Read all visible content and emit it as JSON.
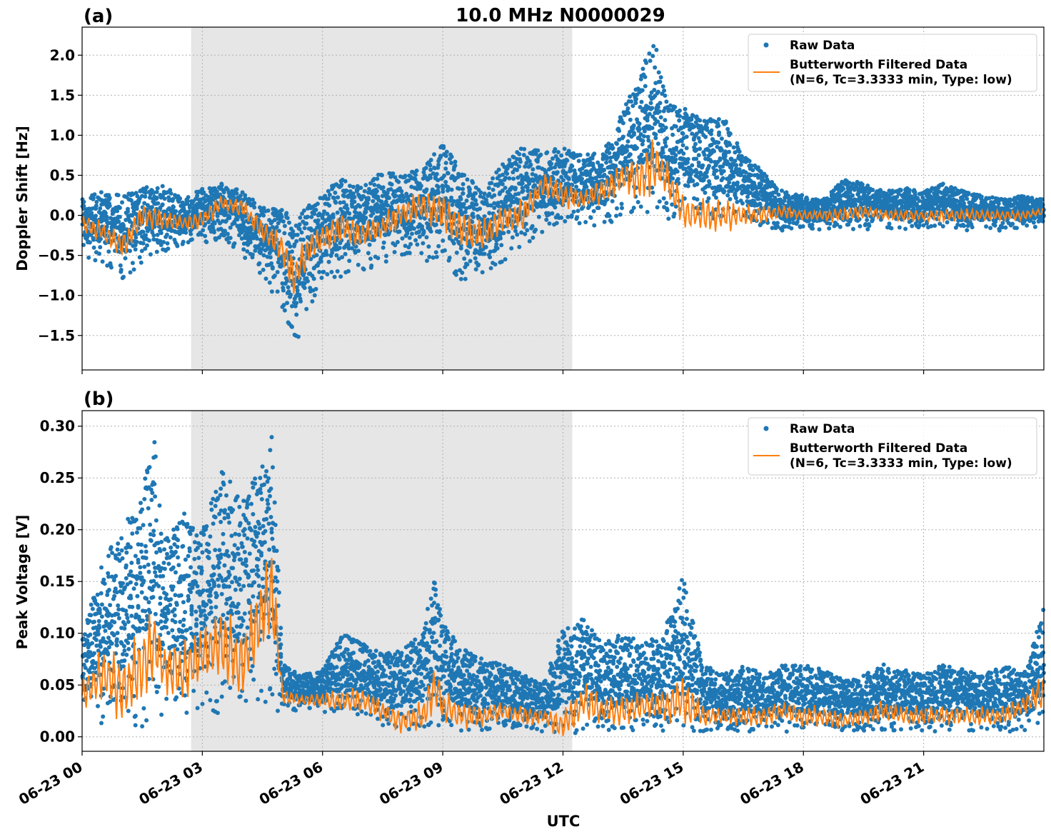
{
  "figure": {
    "title": "10.0 MHz N0000029",
    "xlabel": "UTC"
  },
  "colors": {
    "raw": "#1f77b4",
    "filtered": "#ff7f0e",
    "shade": "#e6e6e6",
    "grid": "#b0b0b0"
  },
  "chart_data": [
    {
      "type": "scatter",
      "panel_label": "(a)",
      "ylabel": "Doppler Shift [Hz]",
      "xlim": [
        0,
        24
      ],
      "ylim": [
        -1.93,
        2.35
      ],
      "yticks": [
        -1.5,
        -1.0,
        -0.5,
        0.0,
        0.5,
        1.0,
        1.5,
        2.0
      ],
      "ytick_labels": [
        "−1.5",
        "−1.0",
        "−0.5",
        "0.0",
        "0.5",
        "1.0",
        "1.5",
        "2.0"
      ],
      "xticks": [
        0,
        3,
        6,
        9,
        12,
        15,
        18,
        21
      ],
      "xtick_labels": [
        "06-23 00",
        "06-23 03",
        "06-23 06",
        "06-23 09",
        "06-23 12",
        "06-23 15",
        "06-23 18",
        "06-23 21"
      ],
      "shaded_interval_hours": [
        2.72,
        12.23
      ],
      "grid": true,
      "legend": {
        "position": "top-right",
        "raw_label": "Raw Data",
        "filtered_label": "Butterworth Filtered Data",
        "filtered_params": "(N=6, Tc=3.3333 min, Type: low)"
      },
      "series": [
        {
          "name": "Raw Data",
          "kind": "scatter",
          "x": [
            0,
            0.5,
            1.0,
            1.5,
            2.0,
            2.5,
            3.0,
            3.5,
            4.0,
            4.5,
            5.0,
            5.3,
            5.6,
            6.0,
            6.5,
            7.0,
            7.5,
            8.0,
            8.5,
            9.0,
            9.5,
            10.0,
            10.5,
            11.0,
            11.5,
            12.0,
            12.5,
            13.0,
            13.5,
            14.0,
            14.3,
            14.6,
            15.0,
            15.5,
            16.0,
            16.5,
            17.0,
            17.5,
            18.0,
            18.5,
            19.0,
            19.5,
            20.0,
            20.5,
            21.0,
            21.5,
            22.0,
            22.5,
            23.0,
            23.5,
            24.0
          ],
          "low": [
            -0.5,
            -0.6,
            -0.8,
            -0.6,
            -0.45,
            -0.4,
            -0.35,
            -0.3,
            -0.5,
            -0.75,
            -1.2,
            -1.7,
            -1.3,
            -0.9,
            -0.85,
            -0.7,
            -0.6,
            -0.5,
            -0.6,
            -0.65,
            -0.9,
            -0.85,
            -0.6,
            -0.4,
            -0.2,
            -0.1,
            -0.1,
            -0.15,
            0.0,
            0.05,
            0.0,
            -0.05,
            -0.05,
            -0.05,
            -0.1,
            -0.1,
            -0.15,
            -0.2,
            -0.15,
            -0.2,
            -0.15,
            -0.2,
            -0.15,
            -0.2,
            -0.15,
            -0.15,
            -0.2,
            -0.15,
            -0.2,
            -0.15,
            -0.15
          ],
          "high": [
            0.2,
            0.3,
            0.25,
            0.35,
            0.4,
            0.2,
            0.35,
            0.4,
            0.3,
            0.1,
            0.1,
            -0.1,
            0.1,
            0.3,
            0.45,
            0.35,
            0.55,
            0.5,
            0.6,
            0.9,
            0.55,
            0.3,
            0.65,
            0.85,
            0.8,
            0.85,
            0.75,
            0.8,
            1.3,
            1.9,
            2.15,
            1.4,
            1.35,
            1.2,
            1.25,
            0.75,
            0.55,
            0.3,
            0.25,
            0.2,
            0.45,
            0.4,
            0.3,
            0.35,
            0.3,
            0.4,
            0.3,
            0.25,
            0.2,
            0.25,
            0.2
          ]
        },
        {
          "name": "Butterworth Filtered Data",
          "kind": "line",
          "x": [
            0,
            0.5,
            1.0,
            1.5,
            2.0,
            2.5,
            3.0,
            3.5,
            4.0,
            4.5,
            5.0,
            5.3,
            5.6,
            6.0,
            6.5,
            7.0,
            7.5,
            8.0,
            8.5,
            9.0,
            9.5,
            10.0,
            10.5,
            11.0,
            11.5,
            12.0,
            12.5,
            13.0,
            13.5,
            14.0,
            14.3,
            14.6,
            15.0,
            15.5,
            16.0,
            16.5,
            17.0,
            17.5,
            18.0,
            18.5,
            19.0,
            19.5,
            20.0,
            20.5,
            21.0,
            21.5,
            22.0,
            22.5,
            23.0,
            23.5,
            24.0
          ],
          "y": [
            -0.1,
            -0.2,
            -0.4,
            0.0,
            -0.05,
            -0.1,
            -0.05,
            0.15,
            0.1,
            -0.2,
            -0.4,
            -0.8,
            -0.45,
            -0.3,
            -0.15,
            -0.25,
            -0.15,
            0.05,
            0.1,
            0.05,
            -0.2,
            -0.25,
            -0.05,
            0.0,
            0.4,
            0.25,
            0.2,
            0.3,
            0.5,
            0.5,
            0.65,
            0.45,
            0.05,
            0.0,
            0.0,
            0.0,
            0.0,
            0.05,
            0.0,
            0.0,
            0.0,
            0.05,
            0.0,
            0.0,
            0.0,
            0.0,
            0.0,
            0.0,
            0.0,
            0.0,
            0.05
          ]
        }
      ]
    },
    {
      "type": "scatter",
      "panel_label": "(b)",
      "ylabel": "Peak Voltage [V]",
      "xlim": [
        0,
        24
      ],
      "ylim": [
        -0.014,
        0.315
      ],
      "yticks": [
        0.0,
        0.05,
        0.1,
        0.15,
        0.2,
        0.25,
        0.3
      ],
      "ytick_labels": [
        "0.00",
        "0.05",
        "0.10",
        "0.15",
        "0.20",
        "0.25",
        "0.30"
      ],
      "xticks": [
        0,
        3,
        6,
        9,
        12,
        15,
        18,
        21
      ],
      "xtick_labels": [
        "06-23 00",
        "06-23 03",
        "06-23 06",
        "06-23 09",
        "06-23 12",
        "06-23 15",
        "06-23 18",
        "06-23 21"
      ],
      "shaded_interval_hours": [
        2.72,
        12.23
      ],
      "grid": true,
      "legend": {
        "position": "top-right",
        "raw_label": "Raw Data",
        "filtered_label": "Butterworth Filtered Data",
        "filtered_params": "(N=6, Tc=3.3333 min, Type: low)"
      },
      "series": [
        {
          "name": "Raw Data",
          "kind": "scatter",
          "x": [
            0,
            0.5,
            1.0,
            1.5,
            1.8,
            2.0,
            2.5,
            3.0,
            3.5,
            4.0,
            4.5,
            4.75,
            5.0,
            5.5,
            6.0,
            6.5,
            7.0,
            7.5,
            8.0,
            8.5,
            8.8,
            9.0,
            9.5,
            10.0,
            10.5,
            11.0,
            11.5,
            12.0,
            12.5,
            13.0,
            13.5,
            14.0,
            14.5,
            15.0,
            15.5,
            16.0,
            16.5,
            17.0,
            17.5,
            18.0,
            18.5,
            19.0,
            19.5,
            20.0,
            20.5,
            21.0,
            21.5,
            22.0,
            22.5,
            23.0,
            23.5,
            24.0
          ],
          "low": [
            0.015,
            0.01,
            0.01,
            0.01,
            0.01,
            0.015,
            0.02,
            0.03,
            0.02,
            0.03,
            0.03,
            0.025,
            0.025,
            0.025,
            0.02,
            0.025,
            0.02,
            0.01,
            0.005,
            0.01,
            0.01,
            0.01,
            0.005,
            0.005,
            0.01,
            0.005,
            0.005,
            0.0,
            0.005,
            0.005,
            0.005,
            0.005,
            0.005,
            0.005,
            0.005,
            0.005,
            0.005,
            0.005,
            0.005,
            0.005,
            0.005,
            0.005,
            0.005,
            0.005,
            0.005,
            0.005,
            0.005,
            0.005,
            0.005,
            0.005,
            0.005,
            0.01
          ],
          "high": [
            0.095,
            0.17,
            0.2,
            0.24,
            0.29,
            0.19,
            0.22,
            0.2,
            0.26,
            0.23,
            0.27,
            0.3,
            0.07,
            0.06,
            0.065,
            0.1,
            0.09,
            0.08,
            0.085,
            0.1,
            0.158,
            0.11,
            0.085,
            0.075,
            0.07,
            0.06,
            0.05,
            0.105,
            0.115,
            0.09,
            0.1,
            0.09,
            0.1,
            0.155,
            0.07,
            0.06,
            0.07,
            0.06,
            0.07,
            0.07,
            0.065,
            0.055,
            0.06,
            0.07,
            0.065,
            0.06,
            0.07,
            0.065,
            0.06,
            0.07,
            0.06,
            0.125
          ]
        },
        {
          "name": "Butterworth Filtered Data",
          "kind": "line",
          "x": [
            0,
            0.5,
            1.0,
            1.5,
            1.8,
            2.0,
            2.5,
            3.0,
            3.5,
            4.0,
            4.5,
            4.75,
            5.0,
            5.5,
            6.0,
            6.5,
            7.0,
            7.5,
            8.0,
            8.5,
            8.8,
            9.0,
            9.5,
            10.0,
            10.5,
            11.0,
            11.5,
            12.0,
            12.5,
            13.0,
            13.5,
            14.0,
            14.5,
            15.0,
            15.5,
            16.0,
            16.5,
            17.0,
            17.5,
            18.0,
            18.5,
            19.0,
            19.5,
            20.0,
            20.5,
            21.0,
            21.5,
            22.0,
            22.5,
            23.0,
            23.5,
            24.0
          ],
          "y": [
            0.04,
            0.06,
            0.045,
            0.07,
            0.09,
            0.07,
            0.06,
            0.08,
            0.09,
            0.07,
            0.12,
            0.14,
            0.04,
            0.035,
            0.035,
            0.035,
            0.035,
            0.025,
            0.015,
            0.02,
            0.05,
            0.03,
            0.02,
            0.02,
            0.025,
            0.02,
            0.02,
            0.01,
            0.035,
            0.025,
            0.025,
            0.03,
            0.03,
            0.035,
            0.02,
            0.02,
            0.02,
            0.02,
            0.025,
            0.02,
            0.02,
            0.015,
            0.02,
            0.025,
            0.02,
            0.02,
            0.02,
            0.02,
            0.02,
            0.02,
            0.03,
            0.045
          ]
        }
      ]
    }
  ]
}
